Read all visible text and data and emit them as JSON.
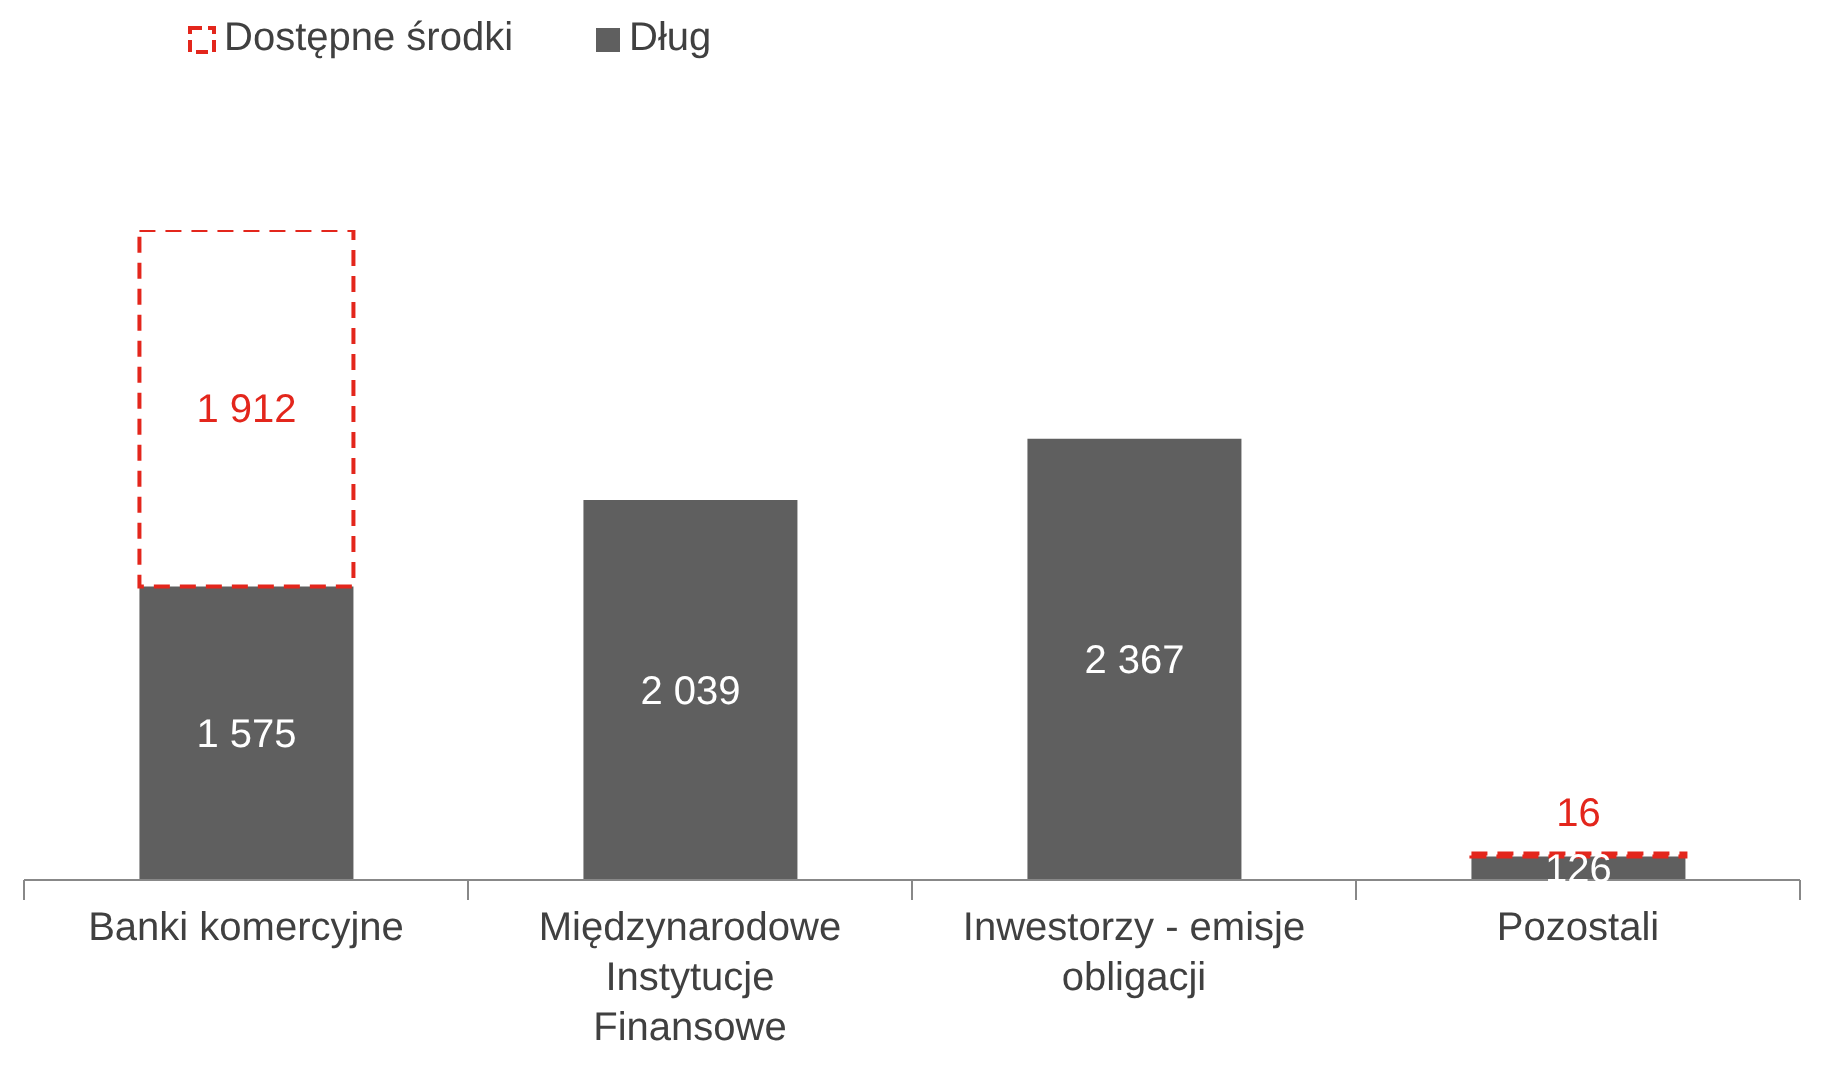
{
  "chart_data": {
    "type": "bar",
    "stacked": true,
    "categories": [
      "Banki komercyjne",
      "Międzynarodowe Instytucje Finansowe",
      "Inwestorzy - emisje obligacji",
      "Pozostali"
    ],
    "series": [
      {
        "name": "Dług",
        "color": "#5f5f5f",
        "values": [
          1575,
          2039,
          2367,
          126
        ]
      },
      {
        "name": "Dostępne środki",
        "color": "#e3261c",
        "line_style": "dashed",
        "values": [
          1912,
          null,
          null,
          16
        ]
      }
    ],
    "data_labels": true,
    "legend": "top left",
    "grid": false
  }
}
